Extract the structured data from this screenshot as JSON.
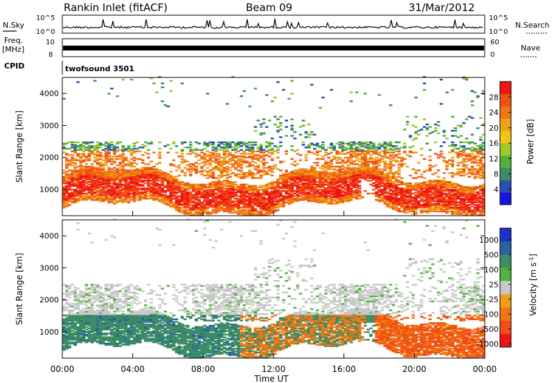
{
  "header": {
    "station": "Rankin Inlet (fitACF)",
    "beam": "Beam 09",
    "date": "31/Mar/2012"
  },
  "top_panels": {
    "nsky_label": "N.Sky",
    "nsearch_label": "N.Search",
    "nsky_ticks": [
      "10^5",
      "10^0"
    ],
    "nsearch_ticks": [
      "10^5",
      "10^0"
    ],
    "freq_label": "Freq.",
    "freq_unit": "[MHz]",
    "freq_ticks": [
      "10",
      "8"
    ],
    "nave_label": "Nave",
    "nave_ticks": [
      "60",
      "0"
    ],
    "cpid_label": "CPID",
    "cpid_value": "twofsound 3501"
  },
  "chart_data": [
    {
      "type": "heatmap",
      "name": "power",
      "ylabel": "Slant Range [km]",
      "xlabel": "",
      "ylim": [
        180,
        4500
      ],
      "yticks": [
        1000,
        2000,
        3000,
        4000
      ],
      "colorbar_label": "Power [dB]",
      "colorbar_ticks": [
        "4",
        "8",
        "12",
        "16",
        "20",
        "24",
        "28"
      ],
      "colorbar_colors": [
        "#1414e6",
        "#2850b4",
        "#3c8c64",
        "#50b43c",
        "#a0c828",
        "#f0c814",
        "#f0a014",
        "#f07814",
        "#f05014",
        "#f01414"
      ]
    },
    {
      "type": "heatmap",
      "name": "velocity",
      "ylabel": "Slant Range [km]",
      "xlabel": "Time UT",
      "ylim": [
        180,
        4500
      ],
      "yticks": [
        1000,
        2000,
        3000,
        4000
      ],
      "colorbar_label": "Velocity [m s^-1]",
      "colorbar_ticks": [
        "1000",
        "500",
        "100",
        "25",
        "-25",
        "-100",
        "-500",
        "-1000"
      ],
      "colorbar_colors": [
        "#1e32c8",
        "#2864a0",
        "#3c8c64",
        "#50b43c",
        "#c8c8c8",
        "#f0a014",
        "#f07814",
        "#f05014",
        "#f01414"
      ]
    }
  ],
  "x_axis": {
    "ticks": [
      "00:00",
      "04:00",
      "08:00",
      "12:00",
      "16:00",
      "20:00",
      "00:00"
    ],
    "xlabel": "Time UT"
  }
}
